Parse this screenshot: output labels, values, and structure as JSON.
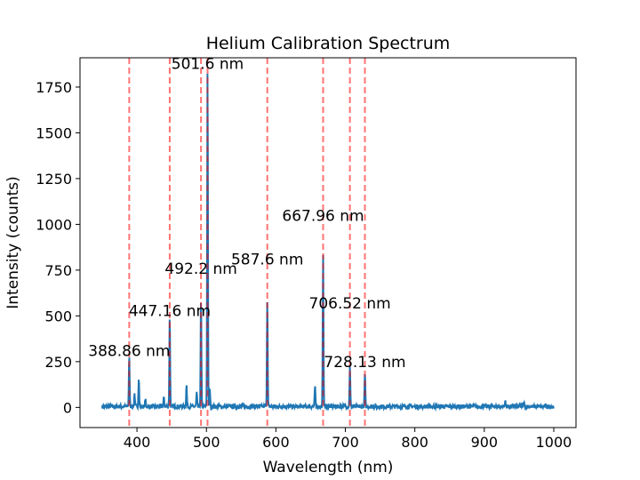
{
  "chart_data": {
    "type": "line",
    "title": "Helium Calibration Spectrum",
    "xlabel": "Wavelength (nm)",
    "ylabel": "Intensity (counts)",
    "xlim": [
      318,
      1032
    ],
    "ylim": [
      -110,
      1910
    ],
    "xticks": [
      400,
      500,
      600,
      700,
      800,
      900,
      1000
    ],
    "yticks": [
      0,
      250,
      500,
      750,
      1000,
      1250,
      1500,
      1750
    ],
    "grid": false,
    "line_color": "#1f77b4",
    "marker_color": "#ff0000",
    "spectrum": {
      "x_range": [
        350,
        1000
      ],
      "baseline": 5,
      "peaks": [
        {
          "x": 388.86,
          "y": 280
        },
        {
          "x": 396.5,
          "y": 70
        },
        {
          "x": 402.6,
          "y": 160
        },
        {
          "x": 412.1,
          "y": 40
        },
        {
          "x": 438.8,
          "y": 50
        },
        {
          "x": 447.16,
          "y": 500
        },
        {
          "x": 471.3,
          "y": 120
        },
        {
          "x": 486.0,
          "y": 75
        },
        {
          "x": 492.2,
          "y": 600
        },
        {
          "x": 501.6,
          "y": 1850
        },
        {
          "x": 504.8,
          "y": 100
        },
        {
          "x": 587.6,
          "y": 590
        },
        {
          "x": 656.3,
          "y": 110
        },
        {
          "x": 667.96,
          "y": 820
        },
        {
          "x": 706.52,
          "y": 225
        },
        {
          "x": 728.13,
          "y": 180
        },
        {
          "x": 930.0,
          "y": 30
        },
        {
          "x": 957.0,
          "y": 25
        }
      ]
    },
    "markers": [
      388.86,
      447.16,
      492.2,
      501.6,
      587.6,
      667.96,
      706.52,
      728.13
    ],
    "annotations": [
      {
        "text": "388.86 nm",
        "x": 388.86,
        "y": 280
      },
      {
        "text": "447.16 nm",
        "x": 447.16,
        "y": 500
      },
      {
        "text": "492.2 nm",
        "x": 492.2,
        "y": 730
      },
      {
        "text": "501.6 nm",
        "x": 501.6,
        "y": 1850
      },
      {
        "text": "587.6 nm",
        "x": 587.6,
        "y": 780
      },
      {
        "text": "667.96 nm",
        "x": 667.96,
        "y": 1020
      },
      {
        "text": "706.52 nm",
        "x": 706.52,
        "y": 540
      },
      {
        "text": "728.13 nm",
        "x": 728.13,
        "y": 220
      }
    ]
  }
}
